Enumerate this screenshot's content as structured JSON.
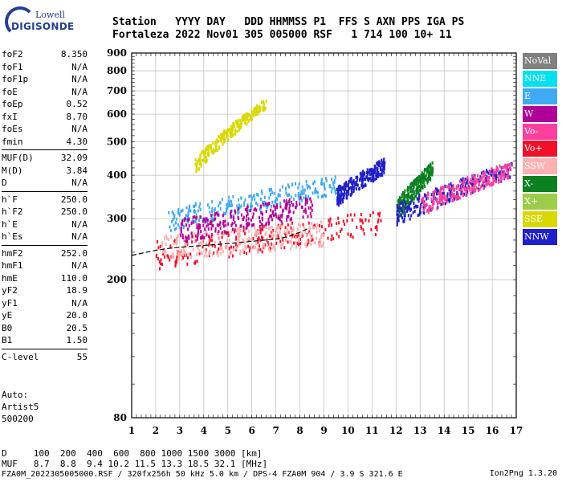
{
  "logo": {
    "line1": "Lowell",
    "line2": "DIGISONDE"
  },
  "header": {
    "row1": "Station   YYYY DAY   DDD HHMMSS P1  FFS S AXN PPS IGA PS",
    "row2": "Fortaleza 2022 Nov01 305 005000 RSF   1 714 100 10+ 11"
  },
  "params": [
    {
      "group": [
        {
          "name": "foF2",
          "value": "8.350"
        },
        {
          "name": "foF1",
          "value": "N/A"
        },
        {
          "name": "foF1p",
          "value": "N/A"
        },
        {
          "name": "foE",
          "value": "N/A"
        },
        {
          "name": "foEp",
          "value": "0.52"
        },
        {
          "name": "fxI",
          "value": "8.70"
        },
        {
          "name": "foEs",
          "value": "N/A"
        },
        {
          "name": "fmin",
          "value": "4.30"
        }
      ]
    },
    {
      "group": [
        {
          "name": "MUF(D)",
          "value": "32.09"
        },
        {
          "name": "M(D)",
          "value": "3.84"
        },
        {
          "name": "D",
          "value": "N/A"
        }
      ]
    },
    {
      "group": [
        {
          "name": "h`F",
          "value": "250.0"
        },
        {
          "name": "h`F2",
          "value": "250.0"
        },
        {
          "name": "h`E",
          "value": "N/A"
        },
        {
          "name": "h`Es",
          "value": "N/A"
        }
      ]
    },
    {
      "group": [
        {
          "name": "hmF2",
          "value": "252.0"
        },
        {
          "name": "hmF1",
          "value": "N/A"
        },
        {
          "name": "hmE",
          "value": "110.0"
        },
        {
          "name": "yF2",
          "value": "18.9"
        },
        {
          "name": "yF1",
          "value": "N/A"
        },
        {
          "name": "yE",
          "value": "20.0"
        },
        {
          "name": "B0",
          "value": "20.5"
        },
        {
          "name": "B1",
          "value": "1.50"
        }
      ]
    },
    {
      "group": [
        {
          "name": "C-level",
          "value": "55"
        }
      ]
    }
  ],
  "auto": {
    "line1": "Auto:",
    "line2": "Artist5",
    "line3": "500200"
  },
  "legend": [
    {
      "label": "NoVal",
      "color": "#808080"
    },
    {
      "label": "NNE",
      "color": "#00e0f0"
    },
    {
      "label": "E",
      "color": "#3fa9f5"
    },
    {
      "label": "W",
      "color": "#b0009a"
    },
    {
      "label": "Vo-",
      "color": "#ff3fa0"
    },
    {
      "label": "Vo+",
      "color": "#f0102a"
    },
    {
      "label": "SSW",
      "color": "#ffb0b0"
    },
    {
      "label": "X-",
      "color": "#0a8020"
    },
    {
      "label": "X+",
      "color": "#9ccc4a"
    },
    {
      "label": "SSE",
      "color": "#d8d800"
    },
    {
      "label": "NNW",
      "color": "#2020c8"
    }
  ],
  "chart_data": {
    "type": "scatter",
    "title": "",
    "xlabel": "",
    "ylabel": "",
    "xlim": [
      1,
      17
    ],
    "ylim": [
      80,
      900
    ],
    "y_scale": "log",
    "x_ticks": [
      1,
      2,
      3,
      4,
      5,
      6,
      7,
      8,
      9,
      10,
      11,
      12,
      13,
      14,
      15,
      16,
      17
    ],
    "y_ticks": [
      80,
      200,
      300,
      400,
      500,
      600,
      700,
      800,
      900
    ],
    "grid": true,
    "trace": [
      [
        1.0,
        235
      ],
      [
        1.5,
        239
      ],
      [
        2.0,
        243
      ],
      [
        2.5,
        246
      ],
      [
        3.0,
        248
      ],
      [
        4.0,
        251
      ],
      [
        5.0,
        254
      ],
      [
        6.0,
        258
      ],
      [
        7.0,
        262
      ],
      [
        7.5,
        266
      ],
      [
        8.0,
        274
      ],
      [
        8.3,
        280
      ]
    ],
    "echo_bands": [
      {
        "x": [
          2.0,
          11.6
        ],
        "y_low": [
          238,
          298
        ],
        "color": "#f0102a"
      },
      {
        "x": [
          2.2,
          9.0
        ],
        "y_low": [
          250,
          275
        ],
        "color": "#ffb0b0"
      },
      {
        "x": [
          2.5,
          9.5
        ],
        "y_low": [
          300,
          380
        ],
        "color": "#3fa9f5"
      },
      {
        "x": [
          3.0,
          8.5
        ],
        "y_low": [
          280,
          330
        ],
        "color": "#b0009a"
      },
      {
        "x": [
          3.6,
          6.6
        ],
        "y_low": [
          430,
          650
        ],
        "color": "#d8d800"
      },
      {
        "x": [
          9.5,
          11.5
        ],
        "y_low": [
          350,
          430
        ],
        "color": "#2020c8"
      },
      {
        "x": [
          12.0,
          13.5
        ],
        "y_low": [
          320,
          420
        ],
        "color": "#0a8020"
      },
      {
        "x": [
          12.0,
          16.8
        ],
        "y_low": [
          310,
          420
        ],
        "color": "#2020c8"
      },
      {
        "x": [
          13.0,
          16.8
        ],
        "y_low": [
          330,
          420
        ],
        "color": "#ff3fa0"
      }
    ]
  },
  "freq_axis": {
    "labels": [
      "1",
      "2",
      "3",
      "4",
      "5",
      "6",
      "7",
      "8",
      "9",
      "10",
      "11",
      "12",
      "13",
      "14",
      "15",
      "16",
      "17"
    ]
  },
  "height_axis": {
    "labels": [
      "900",
      "800",
      "700",
      "600",
      "500",
      "400",
      "300",
      "200",
      "80"
    ]
  },
  "footer": {
    "row1": "D     100  200  400  600  800 1000 1500 3000 [km]",
    "row2": "MUF   8.7  8.8  9.4 10.2 11.5 13.3 18.5 32.1 [MHz]",
    "row3": "FZA0M_2022305005000.RSF / 320fx256h 50 kHz 5.0 km / DPS-4 FZA0M 904 / 3.9 S 321.6 E",
    "version": "Ion2Png 1.3.20"
  }
}
